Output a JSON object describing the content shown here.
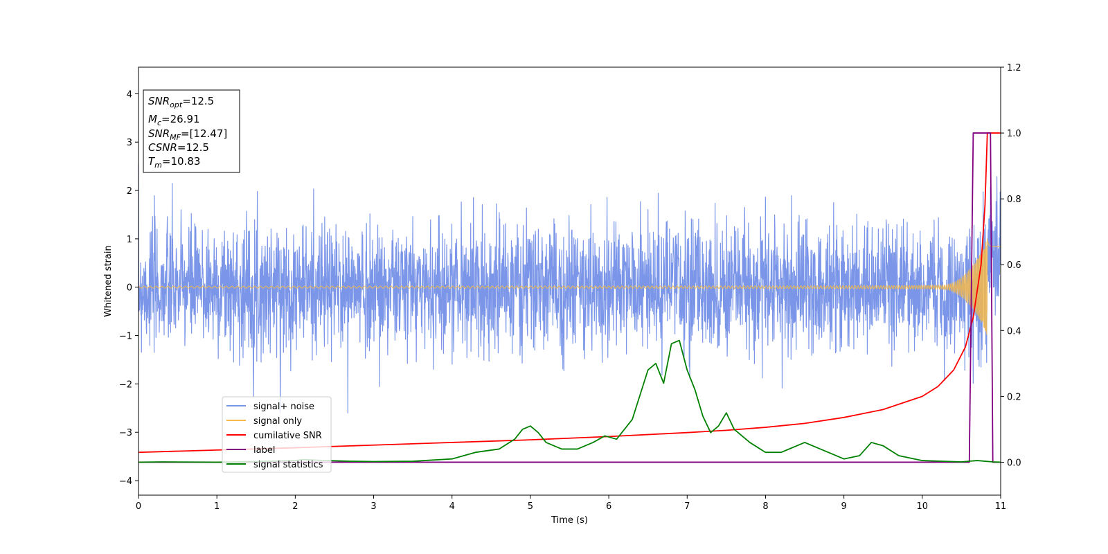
{
  "chart_data": {
    "type": "line",
    "xlabel": "Time (s)",
    "ylabel": "Whitened strain",
    "xlim": [
      0,
      11
    ],
    "ylim": [
      -4.3,
      4.55
    ],
    "y2lim": [
      -0.1,
      1.2
    ],
    "xticks": [
      0,
      1,
      2,
      3,
      4,
      5,
      6,
      7,
      8,
      9,
      10,
      11
    ],
    "yticks": [
      -4,
      -3,
      -2,
      -1,
      0,
      1,
      2,
      3,
      4
    ],
    "y2ticks": [
      0.0,
      0.2,
      0.4,
      0.6,
      0.8,
      1.0,
      1.2
    ],
    "grid": false,
    "legend_position": "lower-left",
    "annotation": [
      {
        "sym": "SNR",
        "sub": "opt",
        "val": "=12.5"
      },
      {
        "sym": "M",
        "sub": "c",
        "val": "=26.91"
      },
      {
        "sym": "SNR",
        "sub": "MF",
        "val": "=[12.47]"
      },
      {
        "sym": "CSNR",
        "sub": "",
        "val": "=12.5"
      },
      {
        "sym": "T",
        "sub": "m",
        "val": "=10.83"
      }
    ],
    "series": [
      {
        "name": "signal+ noise",
        "color": "#7b96e8",
        "axis": "left",
        "kind": "noise",
        "sigma": 0.65,
        "t_range": [
          0,
          11
        ]
      },
      {
        "name": "signal only",
        "color": "#f5b94a",
        "axis": "left",
        "kind": "chirp",
        "merger_time": 10.83,
        "t_range": [
          0,
          11
        ]
      },
      {
        "name": "cumilative SNR",
        "color": "#ff0000",
        "axis": "right",
        "x": [
          0,
          1,
          2,
          3,
          4,
          5,
          6,
          7,
          7.5,
          8,
          8.5,
          9,
          9.5,
          10,
          10.2,
          10.4,
          10.55,
          10.65,
          10.75,
          10.8,
          10.83,
          11
        ],
        "y": [
          0.03,
          0.037,
          0.044,
          0.052,
          0.06,
          0.068,
          0.078,
          0.09,
          0.097,
          0.106,
          0.118,
          0.136,
          0.16,
          0.2,
          0.23,
          0.28,
          0.35,
          0.44,
          0.6,
          0.78,
          1.0,
          1.0
        ]
      },
      {
        "name": "label",
        "color": "#800080",
        "axis": "right",
        "x": [
          0,
          10.6,
          10.65,
          10.87,
          10.9,
          11
        ],
        "y": [
          0,
          0,
          1,
          1,
          0,
          0
        ]
      },
      {
        "name": "signal statistics",
        "color": "#008000",
        "axis": "right",
        "x": [
          0,
          0.3,
          1,
          1.5,
          2,
          2.1,
          2.3,
          2.7,
          3,
          3.5,
          4,
          4.3,
          4.6,
          4.8,
          4.9,
          5.0,
          5.1,
          5.2,
          5.4,
          5.6,
          5.8,
          5.95,
          6.1,
          6.3,
          6.5,
          6.6,
          6.7,
          6.8,
          6.9,
          7.0,
          7.1,
          7.2,
          7.3,
          7.4,
          7.5,
          7.6,
          7.8,
          8.0,
          8.2,
          8.4,
          8.5,
          8.7,
          9.0,
          9.2,
          9.35,
          9.5,
          9.7,
          10.0,
          10.5,
          10.7,
          10.9,
          11
        ],
        "y": [
          0.0,
          0.001,
          0.0,
          0.002,
          0.005,
          0.008,
          0.006,
          0.003,
          0.002,
          0.003,
          0.01,
          0.03,
          0.04,
          0.07,
          0.1,
          0.11,
          0.09,
          0.06,
          0.04,
          0.04,
          0.06,
          0.08,
          0.07,
          0.13,
          0.28,
          0.3,
          0.24,
          0.36,
          0.37,
          0.28,
          0.22,
          0.14,
          0.09,
          0.11,
          0.15,
          0.1,
          0.06,
          0.03,
          0.03,
          0.05,
          0.06,
          0.04,
          0.01,
          0.02,
          0.06,
          0.05,
          0.02,
          0.005,
          0.001,
          0.005,
          0.001,
          0.0
        ]
      }
    ]
  }
}
